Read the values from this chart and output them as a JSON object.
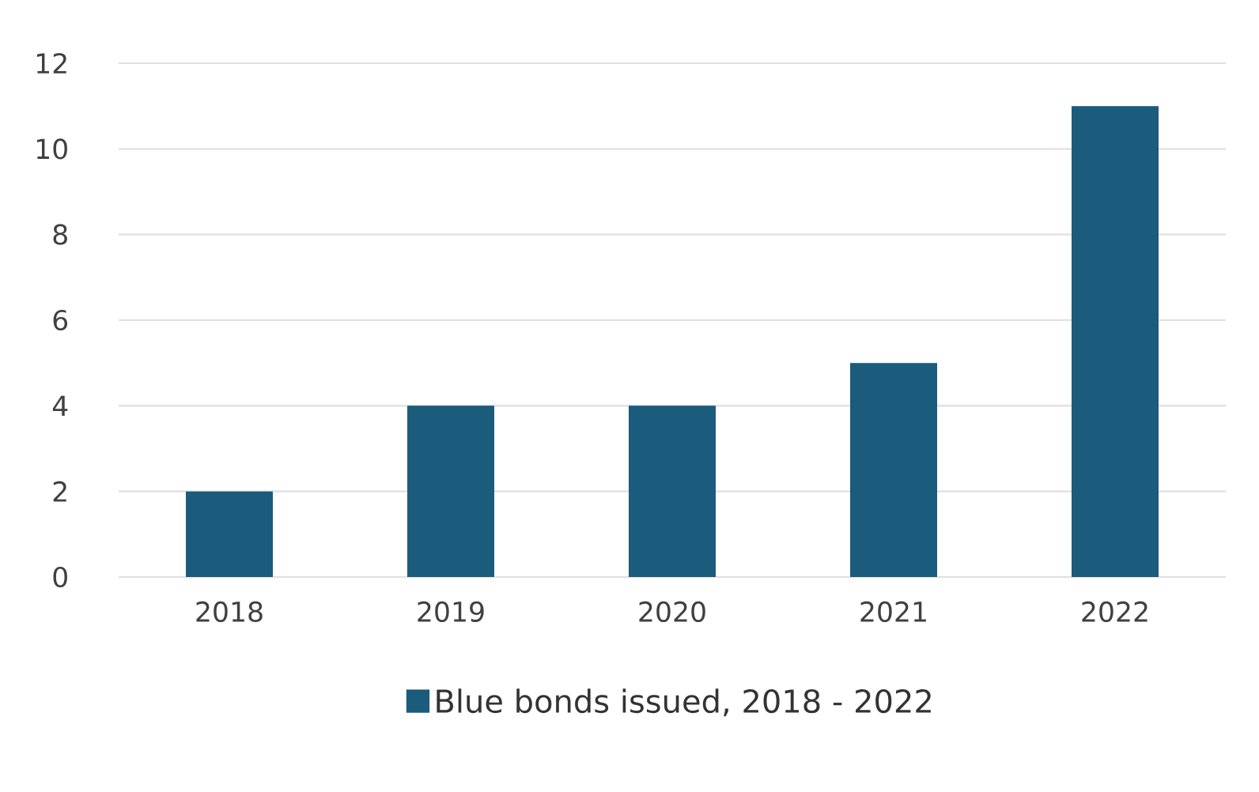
{
  "chart_data": {
    "type": "bar",
    "categories": [
      "2018",
      "2019",
      "2020",
      "2021",
      "2022"
    ],
    "series": [
      {
        "name": "Blue bonds issued, 2018 - 2022",
        "color": "#1b5b7c",
        "values": [
          2,
          4,
          4,
          5,
          11
        ]
      }
    ],
    "ylim": [
      0,
      12
    ],
    "yticks": [
      0,
      2,
      4,
      6,
      8,
      10,
      12
    ],
    "grid": "y",
    "legend": "bottom"
  }
}
